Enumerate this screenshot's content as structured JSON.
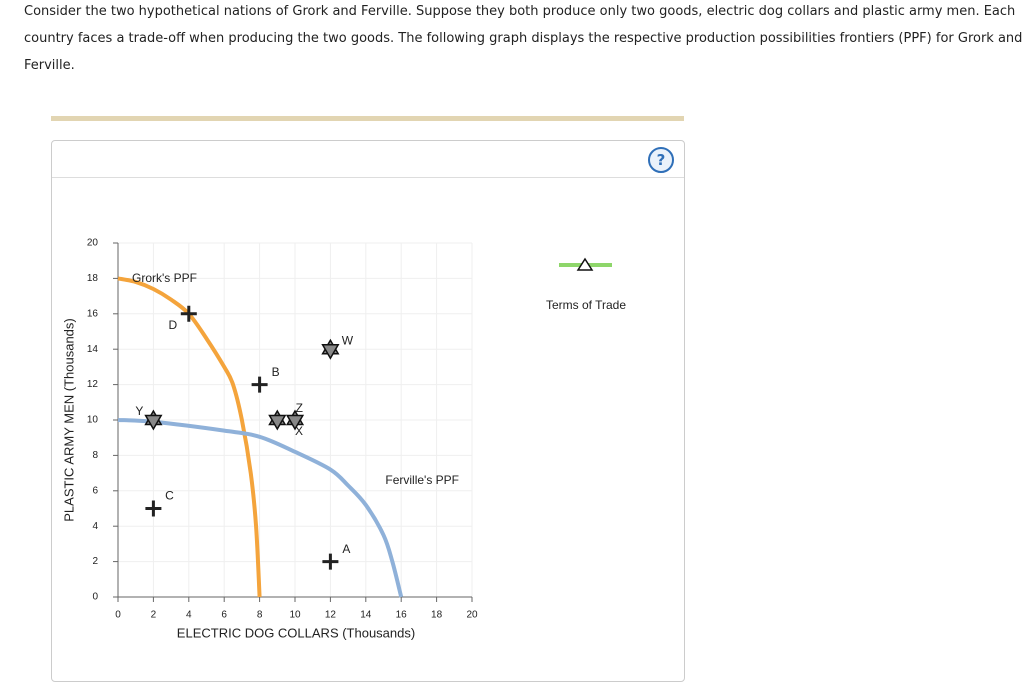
{
  "intro": "Consider the two hypothetical nations of Grork and Ferville. Suppose they both produce only two goods, electric dog collars and plastic army men. Each country faces a trade-off when producing the two goods. The following graph displays the respective production possibilities frontiers (PPF) for Grork and Ferville.",
  "help_icon": "?",
  "chart_data": {
    "type": "line",
    "x_label": "ELECTRIC DOG COLLARS (Thousands)",
    "y_label": "PLASTIC ARMY MEN (Thousands)",
    "xlim": [
      0,
      20
    ],
    "ylim": [
      0,
      20
    ],
    "xticks": [
      0,
      2,
      4,
      6,
      8,
      10,
      12,
      14,
      16,
      18,
      20
    ],
    "yticks": [
      0,
      2,
      4,
      6,
      8,
      10,
      12,
      14,
      16,
      18,
      20
    ],
    "grid": true,
    "series": [
      {
        "name": "Grork's PPF",
        "color": "#f4a43c",
        "x": [
          0,
          1,
          2,
          3,
          4,
          5,
          6,
          6.5,
          7,
          7.5,
          7.8,
          8
        ],
        "values": [
          18,
          17.8,
          17.4,
          16.8,
          16,
          14.6,
          13,
          12,
          10,
          7,
          4,
          0
        ]
      },
      {
        "name": "Ferville's PPF",
        "color": "#8fb1d9",
        "x": [
          0,
          2,
          6,
          8,
          10,
          12,
          13,
          14,
          15,
          15.5,
          16
        ],
        "values": [
          10,
          9.9,
          9.4,
          9.05,
          8.2,
          7.2,
          6.3,
          5.2,
          3.5,
          2,
          0
        ]
      }
    ],
    "points": [
      {
        "label": "D",
        "x": 4,
        "y": 16,
        "marker": "plus"
      },
      {
        "label": "B",
        "x": 8,
        "y": 12,
        "marker": "plus"
      },
      {
        "label": "C",
        "x": 2,
        "y": 5,
        "marker": "plus"
      },
      {
        "label": "A",
        "x": 12,
        "y": 2,
        "marker": "plus"
      },
      {
        "label": "W",
        "x": 12,
        "y": 14,
        "marker": "star"
      },
      {
        "label": "Y",
        "x": 2,
        "y": 10,
        "marker": "star"
      },
      {
        "label": "X",
        "x": 10,
        "y": 10,
        "marker": "star"
      },
      {
        "label": "Z",
        "x": 9,
        "y": 10,
        "marker": "star"
      }
    ],
    "legend": {
      "name": "Terms of Trade",
      "color": "#8ed66a",
      "marker": "triangle"
    }
  }
}
